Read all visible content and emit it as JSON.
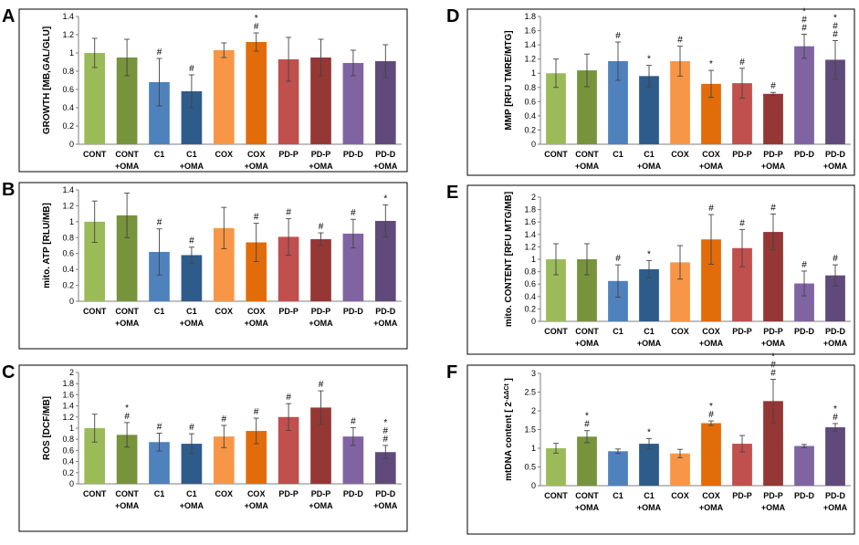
{
  "chart_data": [
    {
      "panel": "A",
      "type": "bar",
      "categories": [
        "CONT",
        "CONT\n+OMA",
        "C1",
        "C1\n+OMA",
        "COX",
        "COX\n+OMA",
        "PD-P",
        "PD-P\n+OMA",
        "PD-D",
        "PD-D\n+OMA"
      ],
      "values": [
        1.0,
        0.95,
        0.68,
        0.58,
        1.03,
        1.12,
        0.93,
        0.95,
        0.89,
        0.91
      ],
      "errors": [
        0.16,
        0.2,
        0.26,
        0.18,
        0.08,
        0.1,
        0.24,
        0.2,
        0.14,
        0.18
      ],
      "annotations": [
        "",
        "",
        "#",
        "#",
        "",
        "*\n#",
        "",
        "",
        "",
        ""
      ],
      "ylabel": "GROWTH [MB,GAL/GLU]",
      "ylim": [
        0,
        1.4
      ],
      "yticks": [
        0,
        0.2,
        0.4,
        0.6,
        0.8,
        1,
        1.2,
        1.4
      ],
      "grid": false,
      "legend": "none"
    },
    {
      "panel": "B",
      "type": "bar",
      "categories": [
        "CONT",
        "CONT\n+OMA",
        "C1",
        "C1\n+OMA",
        "COX",
        "COX\n+OMA",
        "PD-P",
        "PD-P\n+OMA",
        "PD-D",
        "PD-D\n+OMA"
      ],
      "values": [
        1.0,
        1.08,
        0.62,
        0.58,
        0.92,
        0.74,
        0.81,
        0.78,
        0.85,
        1.01
      ],
      "errors": [
        0.26,
        0.28,
        0.29,
        0.1,
        0.26,
        0.24,
        0.23,
        0.08,
        0.18,
        0.2
      ],
      "annotations": [
        "",
        "",
        "#",
        "#",
        "",
        "#",
        "#",
        "#",
        "#",
        "*"
      ],
      "ylabel": "mito. ATP [RLU/MB]",
      "ylim": [
        0,
        1.4
      ],
      "yticks": [
        0,
        0.2,
        0.4,
        0.6,
        0.8,
        1,
        1.2,
        1.4
      ],
      "grid": false,
      "legend": "none"
    },
    {
      "panel": "C",
      "type": "bar",
      "categories": [
        "CONT",
        "CONT\n+OMA",
        "C1",
        "C1\n+OMA",
        "COX",
        "COX\n+OMA",
        "PD-P",
        "PD-P\n+OMA",
        "PD-D",
        "PD-D\n+OMA"
      ],
      "values": [
        1.0,
        0.88,
        0.75,
        0.72,
        0.85,
        0.95,
        1.2,
        1.37,
        0.85,
        0.57
      ],
      "errors": [
        0.25,
        0.22,
        0.16,
        0.18,
        0.2,
        0.23,
        0.24,
        0.3,
        0.16,
        0.12
      ],
      "annotations": [
        "",
        "*\n#",
        "#",
        "#",
        "#",
        "#",
        "#",
        "#",
        "#",
        "*\n#\n#"
      ],
      "ylabel": "ROS [DCF/MB]",
      "ylim": [
        0,
        2
      ],
      "yticks": [
        0,
        0.2,
        0.4,
        0.6,
        0.8,
        1,
        1.2,
        1.4,
        1.6,
        1.8,
        2
      ],
      "grid": false,
      "legend": "none"
    },
    {
      "panel": "D",
      "type": "bar",
      "categories": [
        "CONT",
        "CONT\n+OMA",
        "C1",
        "C1\n+OMA",
        "COX",
        "COX\n+OMA",
        "PD-P",
        "PD-P\n+OMA",
        "PD-D",
        "PD-D\n+OMA"
      ],
      "values": [
        1.0,
        1.04,
        1.17,
        0.96,
        1.17,
        0.85,
        0.86,
        0.71,
        1.38,
        1.19
      ],
      "errors": [
        0.2,
        0.23,
        0.27,
        0.15,
        0.21,
        0.19,
        0.21,
        0.02,
        0.17,
        0.27
      ],
      "annotations": [
        "",
        "",
        "#",
        "*",
        "#",
        "*",
        "#",
        "#",
        "*\n#\n#",
        "*\n#\n#"
      ],
      "ylabel": "MMP [RFU TMRE/MTG]",
      "ylim": [
        0,
        1.8
      ],
      "yticks": [
        0,
        0.2,
        0.4,
        0.6,
        0.8,
        1,
        1.2,
        1.4,
        1.6,
        1.8
      ],
      "grid": false,
      "legend": "none"
    },
    {
      "panel": "E",
      "type": "bar",
      "categories": [
        "CONT",
        "CONT\n+OMA",
        "C1",
        "C1\n+OMA",
        "COX",
        "COX\n+OMA",
        "PD-P",
        "PD-P\n+OMA",
        "PD-D",
        "PD-D\n+OMA"
      ],
      "values": [
        1.0,
        1.0,
        0.65,
        0.84,
        0.95,
        1.32,
        1.18,
        1.44,
        0.61,
        0.74
      ],
      "errors": [
        0.25,
        0.25,
        0.26,
        0.14,
        0.27,
        0.4,
        0.3,
        0.29,
        0.2,
        0.17
      ],
      "annotations": [
        "",
        "",
        "#",
        "*",
        "",
        "#",
        "#",
        "#",
        "#",
        "#"
      ],
      "ylabel": "mito. CONTENT [RFU MTG/MB]",
      "ylim": [
        0,
        2
      ],
      "yticks": [
        0,
        0.2,
        0.4,
        0.6,
        0.8,
        1,
        1.2,
        1.4,
        1.6,
        1.8,
        2
      ],
      "grid": false,
      "legend": "none"
    },
    {
      "panel": "F",
      "type": "bar",
      "categories": [
        "CONT",
        "CONT\n+OMA",
        "C1",
        "C1\n+OMA",
        "COX",
        "COX\n+OMA",
        "PD-P",
        "PD-P\n+OMA",
        "PD-D",
        "PD-D\n+OMA"
      ],
      "values": [
        1.0,
        1.31,
        0.92,
        1.12,
        0.86,
        1.67,
        1.12,
        2.26,
        1.06,
        1.56
      ],
      "errors": [
        0.13,
        0.16,
        0.06,
        0.14,
        0.11,
        0.06,
        0.22,
        0.58,
        0.04,
        0.1
      ],
      "annotations": [
        "",
        "*\n#",
        "",
        "*",
        "",
        "*\n#",
        "",
        "*\n#\n#",
        "",
        "*\n#"
      ],
      "ylabel": "mtDNA content [ 2^-ΔΔCt ]",
      "ylim": [
        0,
        3
      ],
      "yticks": [
        0,
        0.5,
        1,
        1.5,
        2,
        2.5,
        3
      ],
      "grid": false,
      "legend": "none"
    }
  ],
  "colors": [
    "#9bbb59",
    "#77933c",
    "#4f81bd",
    "#2e5c8a",
    "#f79646",
    "#e36c0a",
    "#c0504d",
    "#953735",
    "#8064a2",
    "#604a7b"
  ]
}
